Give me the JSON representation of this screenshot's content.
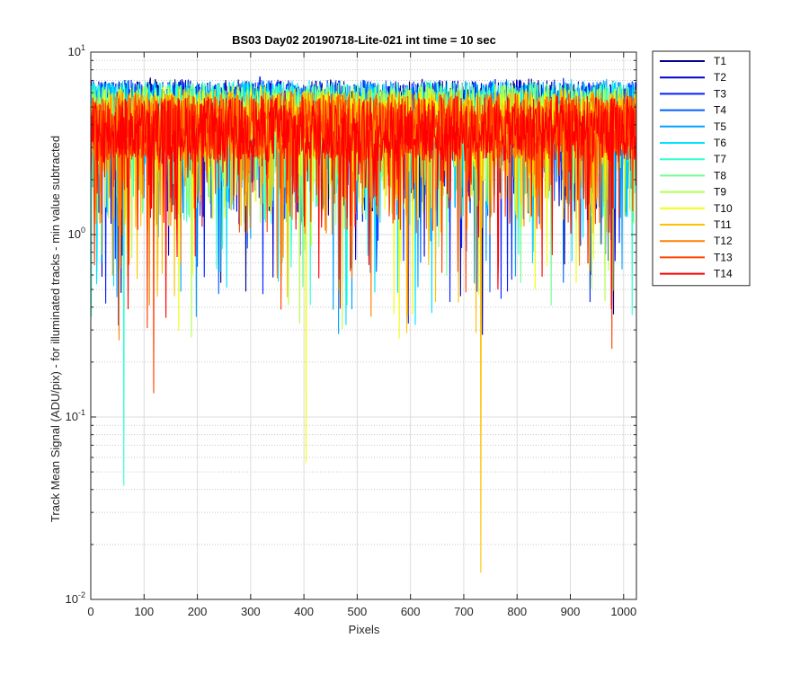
{
  "chart_data": {
    "type": "line",
    "title": "BS03 Day02 20190718-Lite-021 int time = 10 sec",
    "xlabel": "Pixels",
    "ylabel": "Track Mean Signal (ADU/pix) - for illuminated tracks - min value subtracted",
    "xlim": [
      0,
      1024
    ],
    "ylim": [
      0.01,
      10
    ],
    "yscale": "log",
    "x_ticks": [
      0,
      100,
      200,
      300,
      400,
      500,
      600,
      700,
      800,
      900,
      1000
    ],
    "x_tick_labels": [
      "0",
      "100",
      "200",
      "300",
      "400",
      "500",
      "600",
      "700",
      "800",
      "900",
      "1000"
    ],
    "y_ticks": [
      0.01,
      0.1,
      1,
      10
    ],
    "y_tick_labels": [
      {
        "base": "10",
        "exp": "-2"
      },
      {
        "base": "10",
        "exp": "-1"
      },
      {
        "base": "10",
        "exp": "0"
      },
      {
        "base": "10",
        "exp": "1"
      }
    ],
    "grid": true,
    "legend_position": "outside-right",
    "x": [
      0,
      64,
      128,
      192,
      256,
      320,
      384,
      448,
      512,
      576,
      640,
      704,
      768,
      832,
      896,
      960,
      1024
    ],
    "series": [
      {
        "name": "T1",
        "color": "#00008f",
        "values": [
          4.6,
          4.4,
          4.9,
          4.5,
          4.7,
          4.5,
          4.6,
          4.8,
          4.4,
          4.7,
          4.5,
          4.6,
          4.4,
          4.9,
          4.6,
          4.5,
          4.7
        ]
      },
      {
        "name": "T2",
        "color": "#0000d0",
        "values": [
          4.5,
          4.6,
          4.4,
          4.8,
          4.5,
          4.6,
          4.7,
          4.5,
          4.6,
          4.4,
          4.8,
          4.5,
          4.7,
          4.6,
          4.5,
          4.6,
          4.4
        ]
      },
      {
        "name": "T3",
        "color": "#0020ff",
        "values": [
          4.4,
          4.7,
          4.5,
          4.6,
          4.4,
          4.8,
          4.5,
          4.6,
          4.5,
          4.7,
          4.4,
          4.6,
          4.5,
          4.5,
          4.8,
          4.4,
          4.6
        ]
      },
      {
        "name": "T4",
        "color": "#0060ff",
        "values": [
          4.6,
          4.5,
          4.6,
          4.4,
          4.7,
          4.5,
          4.4,
          4.6,
          4.7,
          4.5,
          4.6,
          4.4,
          4.7,
          4.5,
          4.4,
          4.6,
          4.5
        ]
      },
      {
        "name": "T5",
        "color": "#00a0ff",
        "values": [
          4.5,
          4.4,
          4.7,
          4.6,
          4.5,
          4.6,
          4.5,
          4.4,
          4.6,
          4.6,
          4.5,
          4.7,
          4.4,
          4.6,
          4.5,
          4.7,
          4.5
        ]
      },
      {
        "name": "T6",
        "color": "#00e0ff",
        "values": [
          4.7,
          4.6,
          4.5,
          4.5,
          4.6,
          4.4,
          4.7,
          4.5,
          4.5,
          4.6,
          4.4,
          4.5,
          4.6,
          4.4,
          4.7,
          4.5,
          4.6
        ]
      },
      {
        "name": "T7",
        "color": "#30ffd0",
        "values": [
          4.4,
          4.5,
          4.6,
          4.7,
          4.4,
          4.6,
          4.5,
          4.6,
          4.4,
          4.5,
          4.7,
          4.5,
          4.6,
          4.5,
          4.4,
          4.6,
          4.5
        ]
      },
      {
        "name": "T8",
        "color": "#70ff90",
        "values": [
          4.3,
          4.4,
          4.5,
          4.4,
          4.5,
          4.3,
          4.4,
          4.5,
          4.4,
          4.3,
          4.5,
          4.4,
          4.3,
          4.5,
          4.4,
          4.4,
          4.3
        ]
      },
      {
        "name": "T9",
        "color": "#b0ff50",
        "values": [
          4.2,
          4.3,
          4.2,
          4.4,
          4.3,
          4.2,
          4.3,
          4.4,
          4.2,
          4.3,
          4.2,
          4.3,
          4.4,
          4.2,
          4.3,
          4.2,
          4.3
        ]
      },
      {
        "name": "T10",
        "color": "#f0ff10",
        "values": [
          4.1,
          4.2,
          4.3,
          4.1,
          4.2,
          4.3,
          4.1,
          4.2,
          4.1,
          4.2,
          4.3,
          4.1,
          4.2,
          4.3,
          4.1,
          4.2,
          4.1
        ]
      },
      {
        "name": "T11",
        "color": "#ffc000",
        "values": [
          4.0,
          4.1,
          4.0,
          4.2,
          4.1,
          4.0,
          4.1,
          4.0,
          4.2,
          4.1,
          4.0,
          4.1,
          4.0,
          4.1,
          4.2,
          4.0,
          4.1
        ]
      },
      {
        "name": "T12",
        "color": "#ff8000",
        "values": [
          3.9,
          4.0,
          3.9,
          3.9,
          4.0,
          4.1,
          3.9,
          4.0,
          3.9,
          4.0,
          3.9,
          4.1,
          3.9,
          4.0,
          3.9,
          4.0,
          3.9
        ]
      },
      {
        "name": "T13",
        "color": "#ff4000",
        "values": [
          3.8,
          3.9,
          3.8,
          3.9,
          3.8,
          3.9,
          4.0,
          3.8,
          3.9,
          3.8,
          3.9,
          3.8,
          4.0,
          3.8,
          3.9,
          3.8,
          3.9
        ]
      },
      {
        "name": "T14",
        "color": "#ff0000",
        "values": [
          3.7,
          3.8,
          3.7,
          3.8,
          3.7,
          3.8,
          3.7,
          3.9,
          3.7,
          3.8,
          3.7,
          3.8,
          3.7,
          3.8,
          3.9,
          3.7,
          3.8
        ]
      }
    ],
    "annotations": [
      {
        "series": "T7",
        "x": 62,
        "y": 0.042
      },
      {
        "series": "T10",
        "x": 404,
        "y": 0.056
      },
      {
        "series": "T11",
        "x": 732,
        "y": 0.014
      },
      {
        "series": "T13",
        "x": 118,
        "y": 0.135
      }
    ]
  }
}
